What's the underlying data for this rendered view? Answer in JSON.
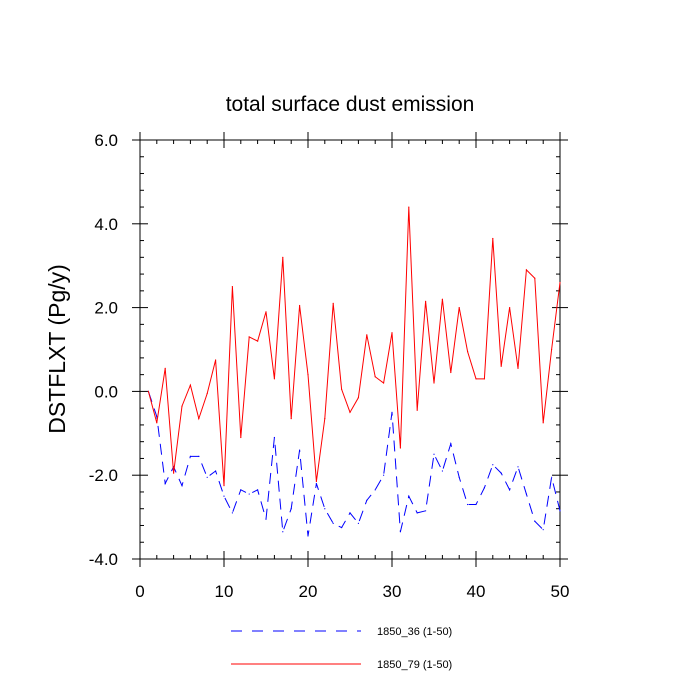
{
  "chart_data": {
    "type": "line",
    "title": "total surface dust emission",
    "xlabel": "",
    "ylabel": "DSTFLXT  (Pg/y)",
    "xlim": [
      0,
      50
    ],
    "ylim": [
      -4.0,
      6.0
    ],
    "x_ticks": [
      0,
      10,
      20,
      30,
      40,
      50
    ],
    "x_tick_labels": [
      "0",
      "10",
      "20",
      "30",
      "40",
      "50"
    ],
    "y_ticks": [
      -4.0,
      -2.0,
      0.0,
      2.0,
      4.0,
      6.0
    ],
    "y_tick_labels": [
      "-4.0",
      "-2.0",
      "0.0",
      "2.0",
      "4.0",
      "6.0"
    ],
    "grid": false,
    "legend_position": "bottom",
    "x": [
      1,
      2,
      3,
      4,
      5,
      6,
      7,
      8,
      9,
      10,
      11,
      12,
      13,
      14,
      15,
      16,
      17,
      18,
      19,
      20,
      21,
      22,
      23,
      24,
      25,
      26,
      27,
      28,
      29,
      30,
      31,
      32,
      33,
      34,
      35,
      36,
      37,
      38,
      39,
      40,
      41,
      42,
      43,
      44,
      45,
      46,
      47,
      48,
      49,
      50
    ],
    "series": [
      {
        "name": "1850_36 (1-50)",
        "color": "#0000ff",
        "dash": "dashed",
        "values": [
          0.0,
          -0.6,
          -2.2,
          -1.8,
          -2.25,
          -1.55,
          -1.55,
          -2.05,
          -1.9,
          -2.5,
          -2.9,
          -2.35,
          -2.45,
          -2.35,
          -3.05,
          -1.1,
          -3.35,
          -2.8,
          -1.4,
          -3.45,
          -2.2,
          -2.8,
          -3.15,
          -3.25,
          -2.9,
          -3.15,
          -2.6,
          -2.35,
          -2.0,
          -0.5,
          -3.35,
          -2.5,
          -2.9,
          -2.85,
          -1.5,
          -1.9,
          -1.25,
          -2.05,
          -2.7,
          -2.7,
          -2.3,
          -1.75,
          -1.95,
          -2.35,
          -1.8,
          -2.45,
          -3.1,
          -3.3,
          -2.05,
          -2.85
        ]
      },
      {
        "name": "1850_79 (1-50)",
        "color": "#ff0000",
        "dash": "solid",
        "values": [
          0.0,
          -0.75,
          0.55,
          -1.95,
          -0.35,
          0.15,
          -0.65,
          -0.05,
          0.75,
          -2.25,
          2.5,
          -1.1,
          1.3,
          1.2,
          1.9,
          0.3,
          3.2,
          -0.65,
          2.05,
          0.4,
          -2.15,
          -0.65,
          2.1,
          0.05,
          -0.5,
          -0.15,
          1.35,
          0.35,
          0.2,
          1.4,
          -1.35,
          4.4,
          -0.45,
          2.15,
          0.2,
          2.2,
          0.45,
          2.0,
          0.95,
          0.3,
          0.3,
          3.65,
          0.6,
          2.0,
          0.55,
          2.9,
          2.7,
          -0.75,
          1.0,
          2.6
        ]
      }
    ]
  }
}
